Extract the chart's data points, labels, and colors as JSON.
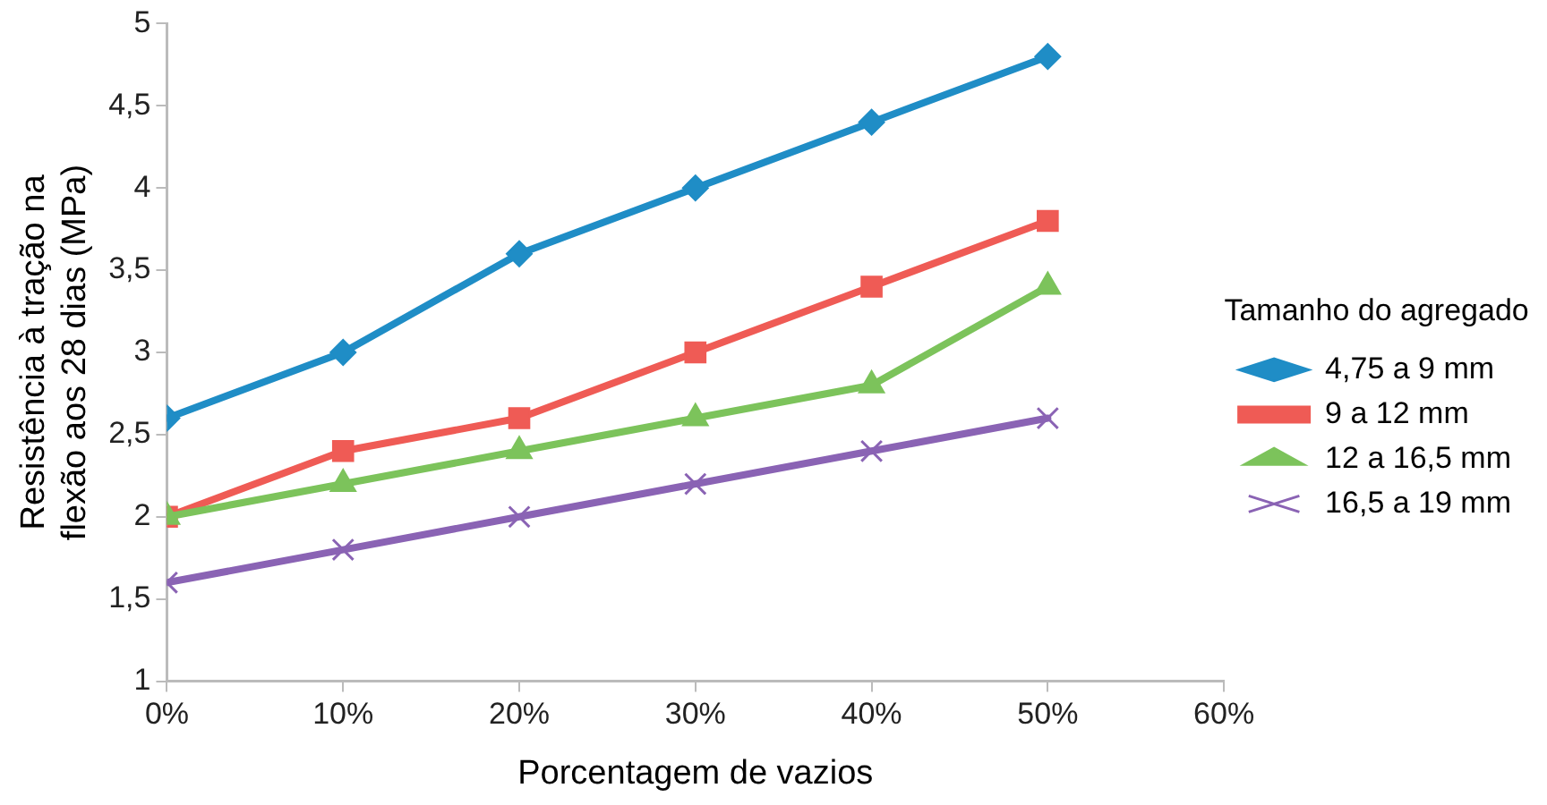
{
  "chart_data": {
    "type": "line",
    "xlabel": "Porcentagem de vazios",
    "ylabel": "Resistência à tração na flexão aos 28 dias (MPa)",
    "legend_title": "Tamanho do agregado",
    "x": [
      0,
      10,
      20,
      30,
      40,
      50
    ],
    "xlim": [
      0,
      60
    ],
    "xticks": [
      {
        "value": 0,
        "label": "0%"
      },
      {
        "value": 10,
        "label": "10%"
      },
      {
        "value": 20,
        "label": "20%"
      },
      {
        "value": 30,
        "label": "30%"
      },
      {
        "value": 40,
        "label": "40%"
      },
      {
        "value": 50,
        "label": "50%"
      },
      {
        "value": 60,
        "label": "60%"
      }
    ],
    "ylim": [
      1,
      5
    ],
    "yticks": [
      1,
      {
        "value": 1.5,
        "label": "1,5"
      },
      2,
      {
        "value": 2.5,
        "label": "2,5"
      },
      3,
      {
        "value": 3.5,
        "label": "3,5"
      },
      4,
      {
        "value": 4.5,
        "label": "4,5"
      },
      5
    ],
    "grid": false,
    "legend": "right",
    "line_style": "solid",
    "series": [
      {
        "name": "4,75 a 9 mm",
        "color": "#1f8dc6",
        "marker": "diamond",
        "values": [
          2.6,
          3.0,
          3.6,
          4.0,
          4.4,
          4.8
        ]
      },
      {
        "name": "9 a 12 mm",
        "color": "#ef5b55",
        "marker": "square",
        "values": [
          2.0,
          2.4,
          2.6,
          3.0,
          3.4,
          3.8
        ]
      },
      {
        "name": "12 a 16,5 mm",
        "color": "#7cc35b",
        "marker": "triangle",
        "values": [
          2.0,
          2.2,
          2.4,
          2.6,
          2.8,
          3.4
        ]
      },
      {
        "name": "16,5 a 19 mm",
        "color": "#8a63b4",
        "marker": "cross",
        "values": [
          1.6,
          1.8,
          2.0,
          2.2,
          2.4,
          2.6
        ]
      }
    ]
  }
}
